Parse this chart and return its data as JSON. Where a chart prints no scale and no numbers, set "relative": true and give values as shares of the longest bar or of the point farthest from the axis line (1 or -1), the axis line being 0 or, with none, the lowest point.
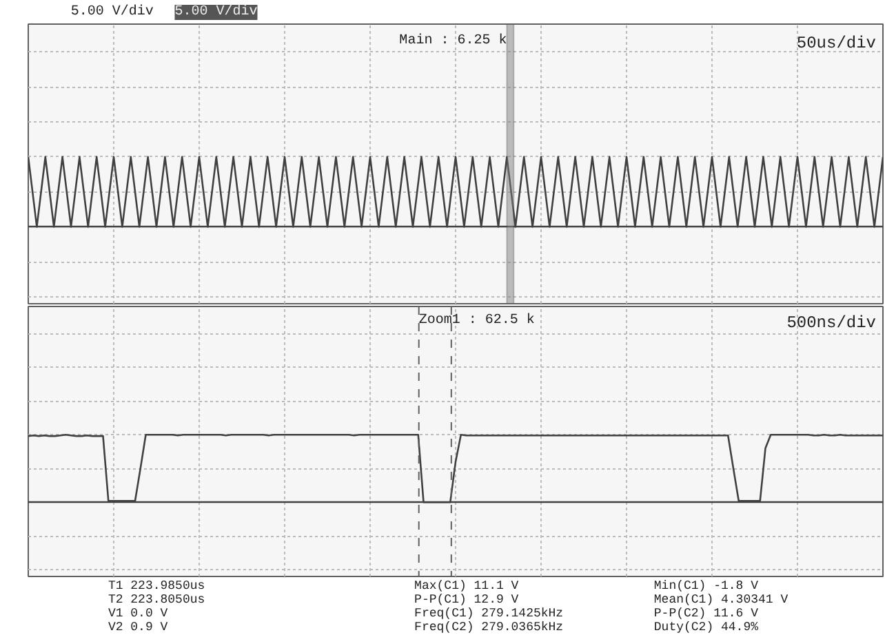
{
  "chart_data": [
    {
      "type": "line",
      "relative": true,
      "grid": true,
      "marker": "none",
      "line_style": "solid",
      "categories": [
        null,
        null,
        null,
        null,
        null,
        null,
        null,
        null,
        null,
        null,
        null,
        null,
        null,
        null,
        null,
        null,
        null,
        null,
        null,
        null,
        null,
        null,
        null,
        null,
        null,
        null,
        null,
        null,
        null,
        null,
        null,
        null,
        null,
        null,
        null,
        null,
        null,
        null,
        null,
        null,
        null,
        null,
        null,
        null,
        null,
        null,
        null,
        null,
        null,
        null,
        null,
        null,
        null,
        null,
        null,
        null,
        null,
        null,
        null,
        null,
        null,
        null,
        null,
        null,
        null,
        null,
        null,
        null,
        null,
        null,
        null,
        null,
        null,
        null,
        null,
        null,
        null,
        null,
        null,
        null,
        null,
        null,
        null,
        null,
        null,
        null,
        null,
        null,
        null,
        null,
        null,
        null,
        null,
        null,
        null,
        null,
        null,
        null,
        null,
        null,
        null
      ],
      "annotations": [
        "5.00 V/div",
        "5.00 V/div",
        "Main : 6.25 k",
        "50us/div"
      ],
      "series": [
        {
          "color": "#404040",
          "values": [
            1,
            0,
            1,
            0,
            1,
            0,
            1,
            0,
            1,
            0,
            1,
            0,
            1,
            0,
            1,
            0,
            1,
            0,
            1,
            0,
            1,
            0,
            1,
            0,
            1,
            0,
            1,
            0,
            1,
            0,
            1,
            0,
            1,
            0,
            1,
            0,
            1,
            0,
            1,
            0,
            1,
            0,
            1,
            0,
            1,
            0,
            1,
            0,
            1,
            0,
            1,
            0,
            1,
            0,
            1,
            0,
            1,
            0,
            1,
            0,
            1,
            0,
            1,
            0,
            1,
            0,
            1,
            0,
            1,
            0,
            1,
            0,
            1,
            0,
            1,
            0,
            1,
            0,
            1,
            0,
            1,
            0,
            1,
            0,
            1,
            0,
            1,
            0,
            1,
            0,
            1,
            0,
            1,
            0,
            1,
            0,
            1,
            0,
            1,
            0,
            1
          ]
        }
      ]
    },
    {
      "type": "line",
      "relative": true,
      "grid": true,
      "marker": "none",
      "line_style": "solid",
      "categories": [
        null,
        null,
        null,
        null,
        null,
        null,
        null,
        null,
        null,
        null,
        null,
        null,
        null,
        null,
        null,
        null,
        null,
        null,
        null,
        null,
        null,
        null,
        null,
        null,
        null,
        null,
        null,
        null,
        null,
        null,
        null,
        null,
        null,
        null,
        null,
        null,
        null,
        null,
        null,
        null,
        null,
        null,
        null,
        null,
        null,
        null,
        null,
        null,
        null,
        null,
        null,
        null,
        null,
        null,
        null,
        null,
        null,
        null,
        null,
        null,
        null,
        null,
        null,
        null,
        null,
        null,
        null,
        null,
        null,
        null,
        null,
        null,
        null,
        null,
        null,
        null,
        null,
        null,
        null,
        null,
        null,
        null,
        null,
        null,
        null,
        null,
        null,
        null,
        null,
        null,
        null,
        null,
        null,
        null,
        null,
        null,
        null,
        null,
        null,
        null,
        null,
        null,
        null,
        null,
        null,
        null,
        null,
        null,
        null,
        null,
        null,
        null,
        null,
        null,
        null,
        null,
        null,
        null,
        null,
        null,
        null,
        null,
        null,
        null,
        null,
        null,
        null,
        null,
        null,
        null,
        null,
        null,
        null,
        null,
        null,
        null,
        null,
        null,
        null,
        null,
        null,
        null,
        null,
        null,
        null,
        null,
        null,
        null,
        null,
        null,
        null,
        null,
        null,
        null,
        null,
        null,
        null,
        null,
        null,
        null,
        null
      ],
      "annotations": [
        "Zoom1 : 62.5 k",
        "500ns/div",
        "T1 223.9850us",
        "T2 223.8050us",
        "V1 0.0 V",
        "V2 0.9 V",
        "Max(C1) 11.1 V",
        "P-P(C1) 12.9 V",
        "Freq(C1) 279.1425kHz",
        "Freq(C2) 279.0365kHz",
        "Min(C1) -1.8 V",
        "Mean(C1) 4.30341 V",
        "P-P(C2) 11.6 V",
        "Duty(C2) 44.9%"
      ],
      "series": [
        {
          "color": "#404040",
          "values": [
            0.98,
            0.99,
            0.98,
            0.99,
            0.98,
            0.98,
            0.99,
            1,
            0.99,
            0.98,
            0.98,
            0.99,
            0.98,
            0.98,
            0.98,
            0.02,
            0.02,
            0.02,
            0.02,
            0.02,
            0.02,
            0.5,
            1,
            1,
            1,
            1,
            1,
            1,
            0.99,
            1,
            1,
            1,
            1,
            1,
            1,
            1,
            1,
            0.99,
            1,
            1,
            1,
            1,
            1,
            1,
            1,
            0.99,
            1,
            1,
            1,
            1,
            1,
            1,
            1,
            1,
            1,
            1,
            1,
            1,
            1,
            1,
            1,
            0.99,
            1,
            1,
            1,
            1,
            1,
            1,
            1,
            1,
            1,
            1,
            1,
            1,
            0,
            0,
            0,
            0,
            0,
            0,
            0.6,
            1,
            0.99,
            0.99,
            0.99,
            0.99,
            0.99,
            0.99,
            0.99,
            0.99,
            0.99,
            0.99,
            0.99,
            0.99,
            0.99,
            0.99,
            0.99,
            0.99,
            0.99,
            0.99,
            0.99,
            0.99,
            0.99,
            0.99,
            0.99,
            0.99,
            0.99,
            0.99,
            0.99,
            0.99,
            0.99,
            0.99,
            0.99,
            0.99,
            0.99,
            0.99,
            0.99,
            0.99,
            0.99,
            0.99,
            0.99,
            0.99,
            0.99,
            0.99,
            0.99,
            0.99,
            0.99,
            0.99,
            0.99,
            0.99,
            0.99,
            0.99,
            0.5,
            0.02,
            0.02,
            0.02,
            0.02,
            0.02,
            0.8,
            1,
            1,
            1,
            1,
            1,
            1,
            1,
            1,
            0.99,
            0.99,
            1,
            0.99,
            0.99,
            1,
            0.99,
            0.99,
            0.99,
            0.99,
            0.99,
            0.99,
            0.99,
            0.99
          ]
        }
      ]
    }
  ]
}
